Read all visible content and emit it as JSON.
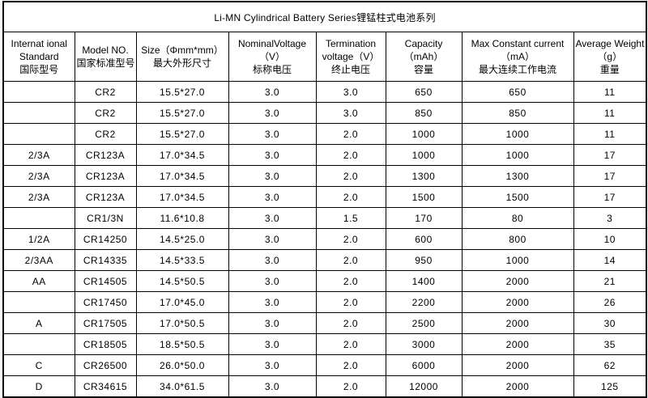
{
  "title": "Li-MN Cylindrical Battery Series锂锰柱式电池系列",
  "colors": {
    "border": "#000000",
    "background": "#ffffff",
    "text": "#000000"
  },
  "table": {
    "headers": [
      {
        "name": "international-standard",
        "lines": [
          "Internat ional",
          "Standard",
          "国际型号"
        ]
      },
      {
        "name": "model-no",
        "lines": [
          "Model NO.",
          "国家标准型号"
        ]
      },
      {
        "name": "size",
        "lines": [
          "Size（Φmm*mm）",
          "最大外形尺寸"
        ]
      },
      {
        "name": "nominal-voltage",
        "lines": [
          "NominalVoltage",
          "（V）",
          "标称电压"
        ]
      },
      {
        "name": "termination-voltage",
        "lines": [
          "Termination",
          "voltage（V）",
          "终止电压"
        ]
      },
      {
        "name": "capacity",
        "lines": [
          "Capacity",
          "（mAh）",
          "容量"
        ]
      },
      {
        "name": "max-constant-current",
        "lines": [
          "Max Constant current",
          "（mA）",
          "最大连续工作电流"
        ]
      },
      {
        "name": "average-weight",
        "lines": [
          "Average Weight",
          "（g）",
          "重量"
        ]
      }
    ],
    "rows": [
      [
        "",
        "CR2",
        "15.5*27.0",
        "3.0",
        "3.0",
        "650",
        "650",
        "11"
      ],
      [
        "",
        "CR2",
        "15.5*27.0",
        "3.0",
        "3.0",
        "850",
        "850",
        "11"
      ],
      [
        "",
        "CR2",
        "15.5*27.0",
        "3.0",
        "2.0",
        "1000",
        "1000",
        "11"
      ],
      [
        "2/3A",
        "CR123A",
        "17.0*34.5",
        "3.0",
        "2.0",
        "1000",
        "1000",
        "17"
      ],
      [
        "2/3A",
        "CR123A",
        "17.0*34.5",
        "3.0",
        "2.0",
        "1300",
        "1300",
        "17"
      ],
      [
        "2/3A",
        "CR123A",
        "17.0*34.5",
        "3.0",
        "2.0",
        "1500",
        "1500",
        "17"
      ],
      [
        "",
        "CR1/3N",
        "11.6*10.8",
        "3.0",
        "1.5",
        "170",
        "80",
        "3"
      ],
      [
        "1/2A",
        "CR14250",
        "14.5*25.0",
        "3.0",
        "2.0",
        "600",
        "800",
        "10"
      ],
      [
        "2/3AA",
        "CR14335",
        "14.5*33.5",
        "3.0",
        "2.0",
        "950",
        "1000",
        "14"
      ],
      [
        "AA",
        "CR14505",
        "14.5*50.5",
        "3.0",
        "2.0",
        "1400",
        "2000",
        "21"
      ],
      [
        "",
        "CR17450",
        "17.0*45.0",
        "3.0",
        "2.0",
        "2200",
        "2000",
        "26"
      ],
      [
        "A",
        "CR17505",
        "17.0*50.5",
        "3.0",
        "2.0",
        "2500",
        "2000",
        "30"
      ],
      [
        "",
        "CR18505",
        "18.5*50.5",
        "3.0",
        "2.0",
        "3000",
        "2000",
        "35"
      ],
      [
        "C",
        "CR26500",
        "26.0*50.0",
        "3.0",
        "2.0",
        "6000",
        "2000",
        "62"
      ],
      [
        "D",
        "CR34615",
        "34.0*61.5",
        "3.0",
        "2.0",
        "12000",
        "2000",
        "125"
      ]
    ]
  }
}
